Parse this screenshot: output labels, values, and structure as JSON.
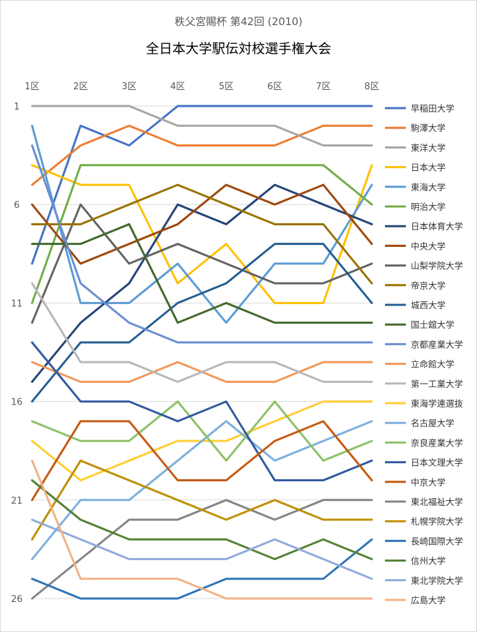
{
  "chart_data": {
    "type": "line",
    "title_line1": "秩父宮賜杯 第42回 (2010)",
    "title_line2": "全日本大学駅伝対校選手権大会",
    "categories": [
      "1区",
      "2区",
      "3区",
      "4区",
      "5区",
      "6区",
      "7区",
      "8区"
    ],
    "y_ticks": [
      1,
      6,
      11,
      16,
      21,
      26
    ],
    "ylim": [
      1,
      26
    ],
    "y_reversed": true,
    "grid": true,
    "legend_position": "right",
    "series": [
      {
        "name": "早稲田大学",
        "color": "#4472c4",
        "values": [
          9,
          2,
          3,
          1,
          1,
          1,
          1,
          1
        ]
      },
      {
        "name": "駒澤大学",
        "color": "#ed7d31",
        "values": [
          5,
          3,
          2,
          3,
          3,
          3,
          2,
          2
        ]
      },
      {
        "name": "東洋大学",
        "color": "#a5a5a5",
        "values": [
          1,
          1,
          1,
          2,
          2,
          2,
          3,
          3
        ]
      },
      {
        "name": "日本大学",
        "color": "#ffc000",
        "values": [
          4,
          5,
          5,
          10,
          8,
          11,
          11,
          4
        ]
      },
      {
        "name": "東海大学",
        "color": "#5b9bd5",
        "values": [
          2,
          11,
          11,
          9,
          12,
          9,
          9,
          5
        ]
      },
      {
        "name": "明治大学",
        "color": "#70ad47",
        "values": [
          11,
          4,
          4,
          4,
          4,
          4,
          4,
          6
        ]
      },
      {
        "name": "日本体育大学",
        "color": "#264478",
        "values": [
          15,
          12,
          10,
          6,
          7,
          5,
          6,
          7
        ]
      },
      {
        "name": "中央大学",
        "color": "#9e480e",
        "values": [
          6,
          9,
          8,
          7,
          5,
          6,
          5,
          8
        ]
      },
      {
        "name": "山梨学院大学",
        "color": "#636363",
        "values": [
          12,
          6,
          9,
          8,
          9,
          10,
          10,
          9
        ]
      },
      {
        "name": "帝京大学",
        "color": "#997300",
        "values": [
          7,
          7,
          6,
          5,
          6,
          7,
          7,
          10
        ]
      },
      {
        "name": "城西大学",
        "color": "#255e91",
        "values": [
          16,
          13,
          13,
          11,
          10,
          8,
          8,
          11
        ]
      },
      {
        "name": "国士舘大学",
        "color": "#43682b",
        "values": [
          8,
          8,
          7,
          12,
          11,
          12,
          12,
          12
        ]
      },
      {
        "name": "京都産業大学",
        "color": "#698ed0",
        "values": [
          3,
          10,
          12,
          13,
          13,
          13,
          13,
          13
        ]
      },
      {
        "name": "立命館大学",
        "color": "#f1975a",
        "values": [
          14,
          15,
          15,
          14,
          15,
          15,
          14,
          14
        ]
      },
      {
        "name": "第一工業大学",
        "color": "#b7b7b7",
        "values": [
          10,
          14,
          14,
          15,
          14,
          14,
          15,
          15
        ]
      },
      {
        "name": "東海学連選抜",
        "color": "#ffcd33",
        "values": [
          18,
          20,
          19,
          18,
          18,
          17,
          16,
          16
        ]
      },
      {
        "name": "名古屋大学",
        "color": "#7cafdd",
        "values": [
          24,
          21,
          21,
          19,
          17,
          19,
          18,
          17
        ]
      },
      {
        "name": "奈良産業大学",
        "color": "#8cc168",
        "values": [
          17,
          18,
          18,
          16,
          19,
          16,
          19,
          18
        ]
      },
      {
        "name": "日本文理大学",
        "color": "#335aa1",
        "values": [
          13,
          16,
          16,
          17,
          16,
          20,
          20,
          19
        ]
      },
      {
        "name": "中京大学",
        "color": "#c55a11",
        "values": [
          21,
          17,
          17,
          20,
          20,
          18,
          17,
          20
        ]
      },
      {
        "name": "東北福祉大学",
        "color": "#848484",
        "values": [
          26,
          24,
          22,
          22,
          21,
          22,
          21,
          21
        ]
      },
      {
        "name": "札幌学院大学",
        "color": "#bf9000",
        "values": [
          23,
          19,
          20,
          21,
          22,
          21,
          22,
          22
        ]
      },
      {
        "name": "長崎国際大学",
        "color": "#2e75b6",
        "values": [
          25,
          26,
          26,
          26,
          25,
          25,
          25,
          23
        ]
      },
      {
        "name": "信州大学",
        "color": "#548235",
        "values": [
          20,
          22,
          23,
          23,
          23,
          24,
          23,
          24
        ]
      },
      {
        "name": "東北学院大学",
        "color": "#8faadc",
        "values": [
          22,
          23,
          24,
          24,
          24,
          23,
          24,
          25
        ]
      },
      {
        "name": "広島大学",
        "color": "#f4b183",
        "values": [
          19,
          25,
          25,
          25,
          26,
          26,
          26,
          26
        ]
      }
    ]
  }
}
